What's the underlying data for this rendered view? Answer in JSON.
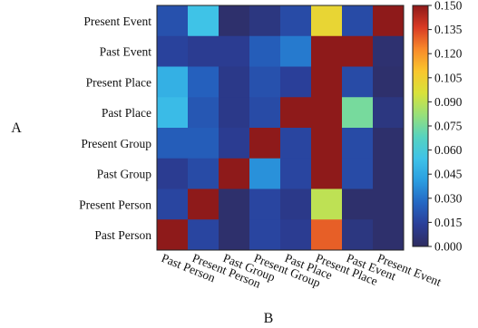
{
  "chart_data": {
    "type": "heatmap",
    "xlabel": "B",
    "ylabel": "A",
    "x_categories": [
      "Past Person",
      "Present Person",
      "Past Group",
      "Present Group",
      "Past Place",
      "Present Place",
      "Past Event",
      "Present Event"
    ],
    "y_categories": [
      "Present Event",
      "Past Event",
      "Present Place",
      "Past Place",
      "Present Group",
      "Past Group",
      "Present Person",
      "Past Person"
    ],
    "values": [
      [
        0.02,
        0.055,
        0.003,
        0.008,
        0.018,
        0.102,
        0.018,
        0.15
      ],
      [
        0.015,
        0.012,
        0.012,
        0.024,
        0.032,
        0.15,
        0.15,
        0.004
      ],
      [
        0.048,
        0.025,
        0.01,
        0.02,
        0.014,
        0.15,
        0.018,
        0.003
      ],
      [
        0.052,
        0.022,
        0.01,
        0.018,
        0.15,
        0.15,
        0.075,
        0.008
      ],
      [
        0.024,
        0.024,
        0.012,
        0.15,
        0.016,
        0.15,
        0.018,
        0.003
      ],
      [
        0.012,
        0.018,
        0.15,
        0.038,
        0.016,
        0.15,
        0.018,
        0.003
      ],
      [
        0.016,
        0.15,
        0.003,
        0.016,
        0.01,
        0.09,
        0.003,
        0.003
      ],
      [
        0.15,
        0.016,
        0.003,
        0.016,
        0.012,
        0.13,
        0.008,
        0.003
      ]
    ],
    "colorbar": {
      "min": 0.0,
      "max": 0.15,
      "ticks": [
        "0.000",
        "0.015",
        "0.030",
        "0.045",
        "0.060",
        "0.075",
        "0.090",
        "0.105",
        "0.120",
        "0.135",
        "0.150"
      ],
      "colormap": "turbo-like",
      "stops": [
        "#2f2c5f",
        "#2a3e98",
        "#2467c4",
        "#2a9de0",
        "#3ec2e8",
        "#56d3c0",
        "#97e07a",
        "#d8e23b",
        "#f9c62d",
        "#f88a2a",
        "#d93a24",
        "#8e1a1a"
      ]
    },
    "grid": false
  }
}
